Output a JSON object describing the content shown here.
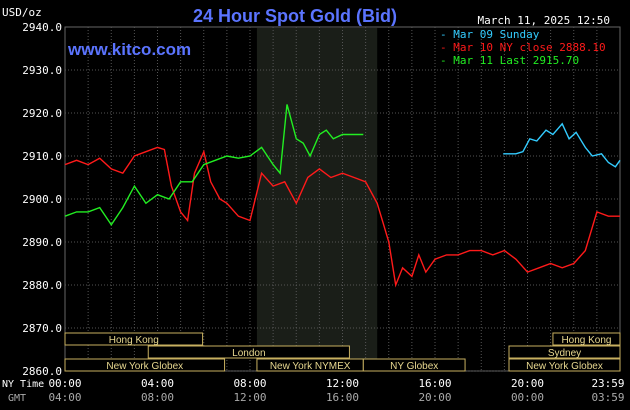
{
  "chart_data": {
    "type": "line",
    "title": "24 Hour Spot Gold (Bid)",
    "ylabel": "USD/oz",
    "site": "www.kitco.com",
    "date_label": "March 11, 2025 12:50",
    "ylim": [
      2860,
      2940
    ],
    "xlim_hours": [
      0,
      24
    ],
    "y_ticks": [
      "2940.0",
      "2930.0",
      "2920.0",
      "2910.0",
      "2900.0",
      "2890.0",
      "2880.0",
      "2870.0",
      "2860.0"
    ],
    "x_axis_ny_label": "NY Time",
    "x_axis_gmt_label": "GMT",
    "x_ticks": [
      {
        "h": 0,
        "ny": "00:00",
        "gmt": "04:00"
      },
      {
        "h": 4,
        "ny": "04:00",
        "gmt": "08:00"
      },
      {
        "h": 8,
        "ny": "08:00",
        "gmt": "12:00"
      },
      {
        "h": 12,
        "ny": "12:00",
        "gmt": "16:00"
      },
      {
        "h": 16,
        "ny": "16:00",
        "gmt": "20:00"
      },
      {
        "h": 20,
        "ny": "20:00",
        "gmt": "00:00"
      },
      {
        "h": 24,
        "ny": "23:59",
        "gmt": "03:59"
      }
    ],
    "grid": true,
    "legend_position": "top-right",
    "shaded_session_hours": [
      8.3,
      13.5
    ],
    "series": [
      {
        "name": "Mar 09 Sunday",
        "color": "#33ccff",
        "x": [
          18.95,
          19.5,
          19.8,
          20.1,
          20.4,
          20.8,
          21.1,
          21.5,
          21.8,
          22.1,
          22.5,
          22.8,
          23.2,
          23.5,
          23.8,
          24.0
        ],
        "y": [
          2910.5,
          2910.5,
          2911.0,
          2914.0,
          2913.5,
          2916.0,
          2915.0,
          2917.5,
          2914.0,
          2915.5,
          2912.0,
          2910.0,
          2910.5,
          2908.5,
          2907.5,
          2909.0
        ]
      },
      {
        "name": "Mar 10 NY close 2888.10",
        "color": "#ff1a1a",
        "x": [
          0,
          0.5,
          1,
          1.5,
          2,
          2.5,
          3,
          3.5,
          4,
          4.3,
          4.6,
          5,
          5.3,
          5.6,
          6,
          6.3,
          6.7,
          7,
          7.5,
          8,
          8.5,
          9,
          9.5,
          10,
          10.5,
          11,
          11.5,
          12,
          12.5,
          13,
          13.5,
          14,
          14.3,
          14.6,
          15,
          15.3,
          15.6,
          16,
          16.5,
          17,
          17.5,
          18,
          18.5,
          19,
          19.5,
          20,
          20.5,
          21,
          21.5,
          22,
          22.5,
          23,
          23.5,
          24
        ],
        "y": [
          2908,
          2909,
          2908,
          2909.5,
          2907,
          2906,
          2910,
          2911,
          2912,
          2911.5,
          2903,
          2897,
          2895,
          2906,
          2911,
          2904,
          2900,
          2899,
          2896,
          2895,
          2906,
          2903,
          2904,
          2899,
          2905,
          2907,
          2905,
          2906,
          2905,
          2904,
          2899,
          2890,
          2880,
          2884,
          2882,
          2887,
          2883,
          2886,
          2887,
          2887,
          2888,
          2888,
          2887,
          2888,
          2886,
          2883,
          2884,
          2885,
          2884,
          2885,
          2888,
          2897,
          2896,
          2896
        ]
      },
      {
        "name": "Mar 11 Last 2915.70",
        "color": "#22ee22",
        "x": [
          0,
          0.5,
          1,
          1.5,
          2,
          2.5,
          3,
          3.5,
          4,
          4.5,
          5,
          5.5,
          6,
          6.5,
          7,
          7.5,
          8,
          8.5,
          9,
          9.3,
          9.6,
          10,
          10.3,
          10.6,
          11,
          11.3,
          11.6,
          12,
          12.5,
          12.9
        ],
        "y": [
          2896,
          2897,
          2897,
          2898,
          2894,
          2898,
          2903,
          2899,
          2901,
          2900,
          2904,
          2904,
          2908,
          2909,
          2910,
          2909.5,
          2910,
          2912,
          2908,
          2906,
          2922,
          2914,
          2913,
          2910,
          2915,
          2916,
          2914,
          2915,
          2915,
          2915
        ]
      }
    ],
    "sessions": [
      {
        "label": "Hong Kong",
        "row": 0,
        "start": 0,
        "end": 5.95
      },
      {
        "label": "London",
        "row": 1,
        "start": 3.6,
        "end": 12.3
      },
      {
        "label": "New York Globex",
        "row": 2,
        "start": 0,
        "end": 6.9
      },
      {
        "label": "New York NYMEX",
        "row": 2,
        "start": 8.3,
        "end": 12.9
      },
      {
        "label": "NY Globex",
        "row": 2,
        "start": 12.9,
        "end": 17.3
      },
      {
        "label": "Hong Kong",
        "row": 0,
        "start": 21.1,
        "end": 24
      },
      {
        "label": "Sydney",
        "row": 1,
        "start": 19.2,
        "end": 24
      },
      {
        "label": "New York Globex",
        "row": 2,
        "start": 19.2,
        "end": 24
      }
    ]
  }
}
